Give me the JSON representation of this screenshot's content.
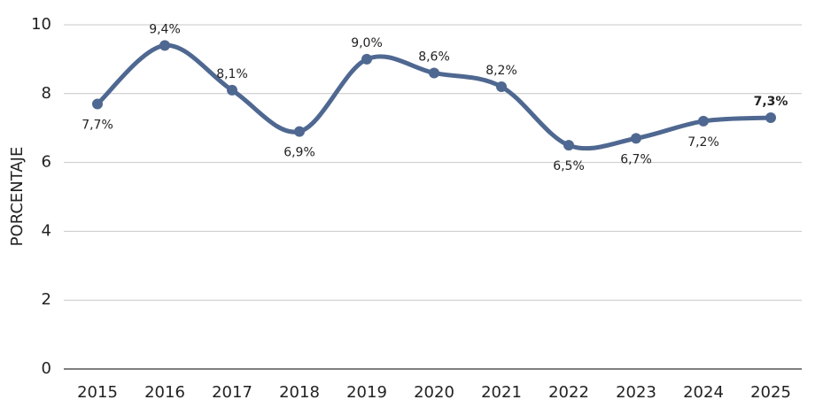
{
  "chart_data": {
    "type": "line",
    "title": "",
    "xlabel": "",
    "ylabel": "PORCENTAJE",
    "ylim": [
      0,
      10
    ],
    "yticks": [
      "0",
      "2",
      "4",
      "6",
      "8",
      "10"
    ],
    "grid": true,
    "categories": [
      "2015",
      "2016",
      "2017",
      "2018",
      "2019",
      "2020",
      "2021",
      "2022",
      "2023",
      "2024",
      "2025"
    ],
    "series": [
      {
        "values": [
          7.7,
          9.4,
          8.1,
          6.9,
          9.0,
          8.6,
          8.2,
          6.5,
          6.7,
          7.2,
          7.3
        ],
        "labels": [
          "7,7%",
          "9,4%",
          "8,1%",
          "6,9%",
          "9,0%",
          "8,6%",
          "8,2%",
          "6,5%",
          "6,7%",
          "7,2%",
          "7,3%"
        ],
        "label_positions": [
          "below",
          "above",
          "above",
          "below",
          "above",
          "above",
          "above",
          "below",
          "below",
          "below",
          "above"
        ],
        "bold_last_label": true,
        "color": "#4f6891"
      }
    ],
    "colors": {
      "grid": "#c8c8c8",
      "axis": "#555555",
      "text": "#222222"
    }
  }
}
